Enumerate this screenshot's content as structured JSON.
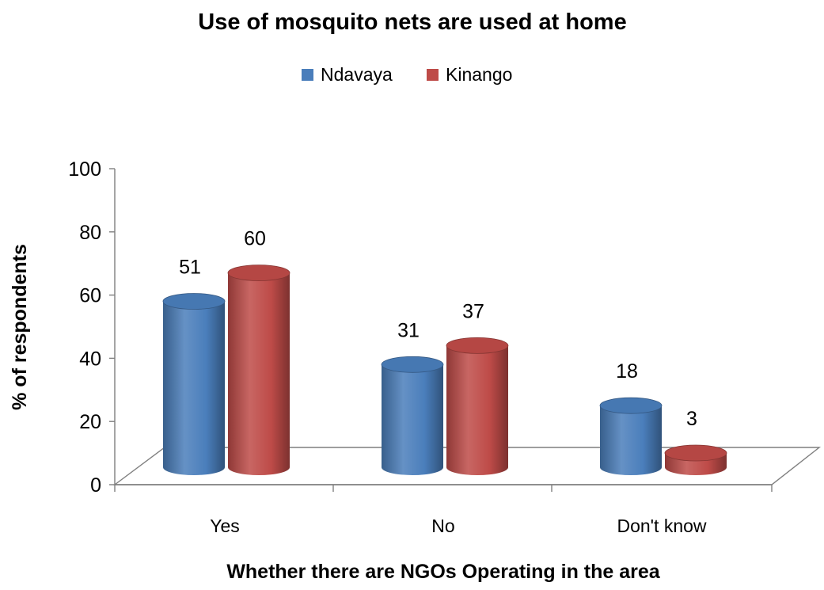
{
  "chart_data": {
    "type": "bar",
    "title": "Use of mosquito nets are used at home",
    "xlabel": "Whether there are NGOs Operating in the area",
    "ylabel": "% of respondents",
    "categories": [
      "Yes",
      "No",
      "Don't know"
    ],
    "series": [
      {
        "name": "Ndavaya",
        "values": [
          51,
          31,
          18
        ],
        "color": "#4a7ebb"
      },
      {
        "name": "Kinango",
        "values": [
          60,
          37,
          3
        ],
        "color": "#be4b48"
      }
    ],
    "data_labels": [
      [
        "51",
        "31",
        "18"
      ],
      [
        "60",
        "37",
        "3"
      ]
    ],
    "ylim": [
      0,
      100
    ],
    "yticks": [
      0,
      20,
      40,
      60,
      80,
      100
    ],
    "y_tick_labels": [
      "0",
      "20",
      "40",
      "60",
      "80",
      "100"
    ],
    "legend_position": "top",
    "grid": false,
    "style": "3d-cylinder"
  }
}
